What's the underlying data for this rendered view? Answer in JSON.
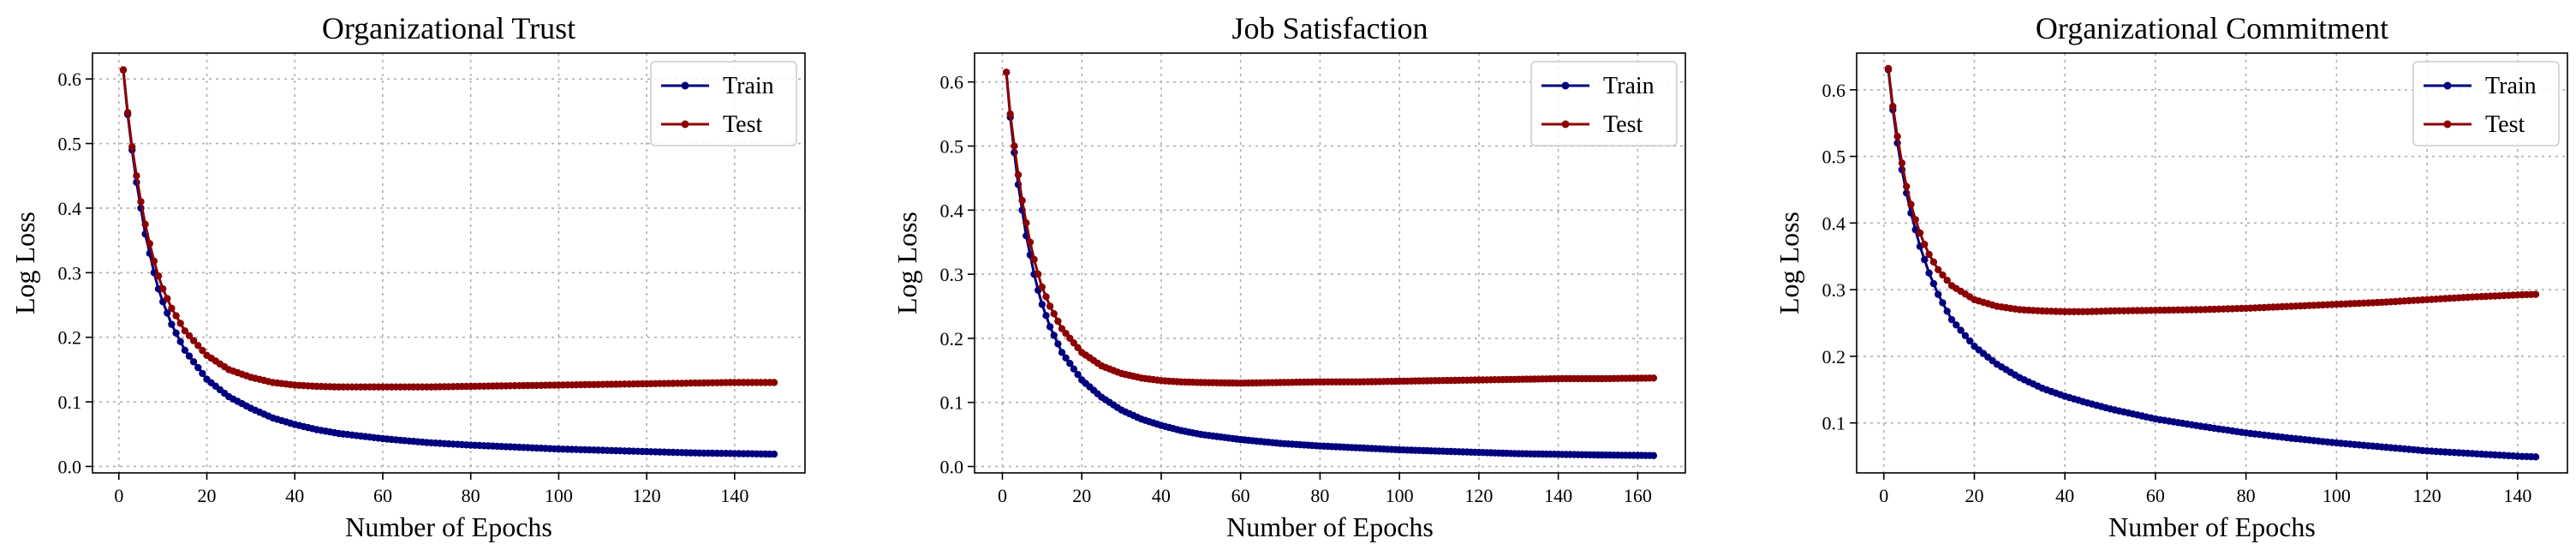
{
  "chart_data": [
    {
      "type": "line",
      "title": "Organizational Trust",
      "xlabel": "Number of Epochs",
      "ylabel": "Log Loss",
      "xlim": [
        -6,
        156
      ],
      "ylim": [
        -0.01,
        0.64
      ],
      "xticks": [
        0,
        20,
        40,
        60,
        80,
        100,
        120,
        140
      ],
      "yticks": [
        0.0,
        0.1,
        0.2,
        0.3,
        0.4,
        0.5,
        0.6
      ],
      "grid": true,
      "legend_position": "top-right",
      "epochs": 149,
      "series": [
        {
          "name": "Train",
          "color": "#00007f",
          "points": [
            [
              1,
              0.614
            ],
            [
              2,
              0.545
            ],
            [
              3,
              0.49
            ],
            [
              4,
              0.44
            ],
            [
              5,
              0.4
            ],
            [
              6,
              0.36
            ],
            [
              7,
              0.33
            ],
            [
              8,
              0.3
            ],
            [
              9,
              0.275
            ],
            [
              10,
              0.255
            ],
            [
              12,
              0.22
            ],
            [
              15,
              0.18
            ],
            [
              20,
              0.135
            ],
            [
              25,
              0.108
            ],
            [
              30,
              0.09
            ],
            [
              35,
              0.075
            ],
            [
              40,
              0.065
            ],
            [
              45,
              0.057
            ],
            [
              50,
              0.051
            ],
            [
              60,
              0.043
            ],
            [
              70,
              0.037
            ],
            [
              80,
              0.033
            ],
            [
              90,
              0.03
            ],
            [
              100,
              0.027
            ],
            [
              110,
              0.025
            ],
            [
              120,
              0.023
            ],
            [
              130,
              0.021
            ],
            [
              140,
              0.02
            ],
            [
              149,
              0.019
            ]
          ]
        },
        {
          "name": "Test",
          "color": "#8b0000",
          "points": [
            [
              1,
              0.614
            ],
            [
              2,
              0.548
            ],
            [
              3,
              0.495
            ],
            [
              4,
              0.45
            ],
            [
              5,
              0.41
            ],
            [
              6,
              0.375
            ],
            [
              7,
              0.345
            ],
            [
              8,
              0.318
            ],
            [
              9,
              0.295
            ],
            [
              10,
              0.275
            ],
            [
              12,
              0.245
            ],
            [
              15,
              0.21
            ],
            [
              20,
              0.172
            ],
            [
              25,
              0.15
            ],
            [
              30,
              0.138
            ],
            [
              35,
              0.13
            ],
            [
              40,
              0.126
            ],
            [
              45,
              0.124
            ],
            [
              50,
              0.123
            ],
            [
              60,
              0.123
            ],
            [
              70,
              0.123
            ],
            [
              80,
              0.124
            ],
            [
              90,
              0.125
            ],
            [
              100,
              0.126
            ],
            [
              110,
              0.127
            ],
            [
              120,
              0.128
            ],
            [
              130,
              0.129
            ],
            [
              140,
              0.13
            ],
            [
              149,
              0.13
            ]
          ]
        }
      ]
    },
    {
      "type": "line",
      "title": "Job Satisfaction",
      "xlabel": "Number of Epochs",
      "ylabel": "Log Loss",
      "xlim": [
        -7,
        172
      ],
      "ylim": [
        -0.01,
        0.645
      ],
      "xticks": [
        0,
        20,
        40,
        60,
        80,
        100,
        120,
        140,
        160
      ],
      "yticks": [
        0.0,
        0.1,
        0.2,
        0.3,
        0.4,
        0.5,
        0.6
      ],
      "grid": true,
      "legend_position": "top-right",
      "epochs": 164,
      "series": [
        {
          "name": "Train",
          "color": "#00007f",
          "points": [
            [
              1,
              0.615
            ],
            [
              2,
              0.545
            ],
            [
              3,
              0.49
            ],
            [
              4,
              0.44
            ],
            [
              5,
              0.4
            ],
            [
              6,
              0.36
            ],
            [
              7,
              0.33
            ],
            [
              8,
              0.3
            ],
            [
              9,
              0.275
            ],
            [
              10,
              0.253
            ],
            [
              12,
              0.218
            ],
            [
              15,
              0.178
            ],
            [
              20,
              0.135
            ],
            [
              25,
              0.108
            ],
            [
              30,
              0.088
            ],
            [
              35,
              0.074
            ],
            [
              40,
              0.064
            ],
            [
              45,
              0.056
            ],
            [
              50,
              0.05
            ],
            [
              60,
              0.042
            ],
            [
              70,
              0.036
            ],
            [
              80,
              0.032
            ],
            [
              90,
              0.029
            ],
            [
              100,
              0.026
            ],
            [
              110,
              0.024
            ],
            [
              120,
              0.022
            ],
            [
              130,
              0.02
            ],
            [
              140,
              0.019
            ],
            [
              150,
              0.018
            ],
            [
              164,
              0.017
            ]
          ]
        },
        {
          "name": "Test",
          "color": "#8b0000",
          "points": [
            [
              1,
              0.615
            ],
            [
              2,
              0.55
            ],
            [
              3,
              0.5
            ],
            [
              4,
              0.455
            ],
            [
              5,
              0.415
            ],
            [
              6,
              0.38
            ],
            [
              7,
              0.35
            ],
            [
              8,
              0.323
            ],
            [
              9,
              0.3
            ],
            [
              10,
              0.28
            ],
            [
              12,
              0.25
            ],
            [
              15,
              0.215
            ],
            [
              20,
              0.178
            ],
            [
              25,
              0.157
            ],
            [
              30,
              0.145
            ],
            [
              35,
              0.138
            ],
            [
              40,
              0.134
            ],
            [
              45,
              0.132
            ],
            [
              50,
              0.131
            ],
            [
              60,
              0.13
            ],
            [
              70,
              0.131
            ],
            [
              80,
              0.132
            ],
            [
              90,
              0.132
            ],
            [
              100,
              0.133
            ],
            [
              110,
              0.134
            ],
            [
              120,
              0.135
            ],
            [
              130,
              0.136
            ],
            [
              140,
              0.137
            ],
            [
              150,
              0.137
            ],
            [
              164,
              0.138
            ]
          ]
        }
      ]
    },
    {
      "type": "line",
      "title": "Organizational Commitment",
      "xlabel": "Number of Epochs",
      "ylabel": "Log Loss",
      "xlim": [
        -6,
        151
      ],
      "ylim": [
        0.025,
        0.655
      ],
      "xticks": [
        0,
        20,
        40,
        60,
        80,
        100,
        120,
        140
      ],
      "yticks": [
        0.1,
        0.2,
        0.3,
        0.4,
        0.5,
        0.6
      ],
      "grid": true,
      "legend_position": "top-right",
      "epochs": 144,
      "series": [
        {
          "name": "Train",
          "color": "#00007f",
          "points": [
            [
              1,
              0.63
            ],
            [
              2,
              0.57
            ],
            [
              3,
              0.52
            ],
            [
              4,
              0.48
            ],
            [
              5,
              0.445
            ],
            [
              6,
              0.415
            ],
            [
              7,
              0.39
            ],
            [
              8,
              0.365
            ],
            [
              9,
              0.345
            ],
            [
              10,
              0.325
            ],
            [
              12,
              0.293
            ],
            [
              15,
              0.255
            ],
            [
              20,
              0.215
            ],
            [
              25,
              0.188
            ],
            [
              30,
              0.168
            ],
            [
              35,
              0.152
            ],
            [
              40,
              0.14
            ],
            [
              45,
              0.13
            ],
            [
              50,
              0.121
            ],
            [
              60,
              0.106
            ],
            [
              70,
              0.095
            ],
            [
              80,
              0.085
            ],
            [
              90,
              0.077
            ],
            [
              100,
              0.07
            ],
            [
              110,
              0.064
            ],
            [
              120,
              0.058
            ],
            [
              130,
              0.054
            ],
            [
              140,
              0.05
            ],
            [
              144,
              0.049
            ]
          ]
        },
        {
          "name": "Test",
          "color": "#8b0000",
          "points": [
            [
              1,
              0.632
            ],
            [
              2,
              0.575
            ],
            [
              3,
              0.53
            ],
            [
              4,
              0.49
            ],
            [
              5,
              0.455
            ],
            [
              6,
              0.428
            ],
            [
              7,
              0.405
            ],
            [
              8,
              0.385
            ],
            [
              9,
              0.368
            ],
            [
              10,
              0.353
            ],
            [
              12,
              0.33
            ],
            [
              15,
              0.306
            ],
            [
              20,
              0.285
            ],
            [
              25,
              0.275
            ],
            [
              30,
              0.27
            ],
            [
              35,
              0.268
            ],
            [
              40,
              0.267
            ],
            [
              45,
              0.267
            ],
            [
              50,
              0.268
            ],
            [
              60,
              0.269
            ],
            [
              70,
              0.27
            ],
            [
              80,
              0.272
            ],
            [
              90,
              0.275
            ],
            [
              100,
              0.278
            ],
            [
              110,
              0.281
            ],
            [
              120,
              0.285
            ],
            [
              130,
              0.289
            ],
            [
              140,
              0.292
            ],
            [
              144,
              0.293
            ]
          ]
        }
      ]
    }
  ]
}
